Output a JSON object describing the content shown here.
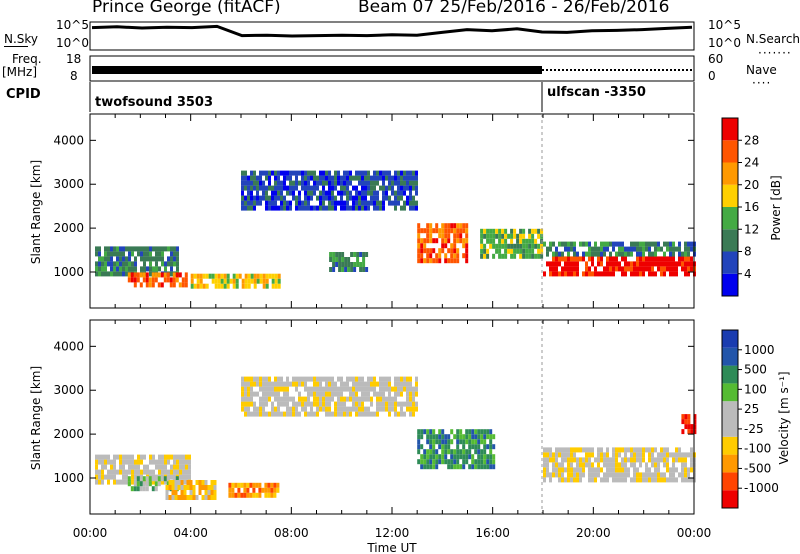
{
  "header": {
    "station": "Prince George (fitACF)",
    "beam_dates": "Beam 07   25/Feb/2016 - 26/Feb/2016"
  },
  "top_panels": {
    "nsky_label": "N.Sky",
    "nsky_ticks": [
      "10^5",
      "10^0"
    ],
    "nsearch_label": "N.Search",
    "nsearch_ticks": [
      "10^5",
      "10^0"
    ],
    "freq_label": "Freq.",
    "freq_unit": "[MHz]",
    "freq_ticks": [
      "18",
      "8"
    ],
    "nave_label": "Nave",
    "nave_ticks": [
      "60",
      "0"
    ],
    "cpid_label": "CPID",
    "cpid_segments": [
      {
        "name": "twofsound 3503",
        "start_h": 0,
        "end_h": 18
      },
      {
        "name": "ulfscan -3350",
        "start_h": 18,
        "end_h": 24
      }
    ]
  },
  "colors": {
    "power_scale": [
      "#0000ee",
      "#2244bb",
      "#3a7a55",
      "#44aa44",
      "#ffd000",
      "#ff9900",
      "#ff5500",
      "#ee0000"
    ],
    "velocity_scale": [
      "#ee0000",
      "#ff4400",
      "#ff9900",
      "#ffcc00",
      "#bbbbbb",
      "#bbbbbb",
      "#55bb33",
      "#2e8b57",
      "#2255aa",
      "#1a3cb0"
    ],
    "ground_scatter": "#bbbbbb"
  },
  "chart_data": [
    {
      "type": "heatmap",
      "name": "power",
      "x_ticks": [
        "00:00",
        "04:00",
        "08:00",
        "12:00",
        "16:00",
        "20:00",
        "00:00"
      ],
      "xlabel": "Time UT",
      "ylabel": "Slant Range [km]",
      "y_ticks": [
        1000,
        2000,
        3000,
        4000
      ],
      "xlim": [
        0,
        24
      ],
      "ylim": [
        180,
        4600
      ],
      "colorbar_label": "Power [dB]",
      "colorbar_ticks": [
        4,
        8,
        12,
        16,
        20,
        24,
        28
      ],
      "regions": [
        {
          "t0": 0.2,
          "t1": 3.5,
          "r0": 900,
          "r1": 1500,
          "level": 2
        },
        {
          "t0": 1.5,
          "t1": 3.8,
          "r0": 650,
          "r1": 950,
          "level": 6
        },
        {
          "t0": 4.0,
          "t1": 7.5,
          "r0": 620,
          "r1": 850,
          "level": 4
        },
        {
          "t0": 9.5,
          "t1": 11.0,
          "r0": 1000,
          "r1": 1400,
          "level": 2
        },
        {
          "t0": 13.0,
          "t1": 15.0,
          "r0": 1200,
          "r1": 2000,
          "level": 6
        },
        {
          "t0": 15.5,
          "t1": 18.0,
          "r0": 1300,
          "r1": 1900,
          "level": 3
        },
        {
          "t0": 18.0,
          "t1": 24.0,
          "r0": 900,
          "r1": 1350,
          "level": 7
        },
        {
          "t0": 18.0,
          "t1": 24.0,
          "r0": 1350,
          "r1": 1650,
          "level": 2
        },
        {
          "t0": 6.0,
          "t1": 13.0,
          "r0": 2400,
          "r1": 3300,
          "level": 1
        }
      ]
    },
    {
      "type": "heatmap",
      "name": "velocity",
      "x_ticks": [
        "00:00",
        "04:00",
        "08:00",
        "12:00",
        "16:00",
        "20:00",
        "00:00"
      ],
      "xlabel": "Time UT",
      "ylabel": "Slant Range [km]",
      "y_ticks": [
        1000,
        2000,
        3000,
        4000
      ],
      "xlim": [
        0,
        24
      ],
      "ylim": [
        180,
        4600
      ],
      "colorbar_label": "Velocity [m s⁻¹]",
      "colorbar_ticks": [
        "1000",
        "500",
        "100",
        "25",
        "-25",
        "-100",
        "-500",
        "-1000"
      ],
      "regions": [
        {
          "t0": 0.2,
          "t1": 4.0,
          "r0": 850,
          "r1": 1500,
          "level": 4
        },
        {
          "t0": 1.5,
          "t1": 3.5,
          "r0": 700,
          "r1": 1000,
          "level": 6
        },
        {
          "t0": 3.0,
          "t1": 5.0,
          "r0": 500,
          "r1": 900,
          "level": 3
        },
        {
          "t0": 5.5,
          "t1": 7.5,
          "r0": 550,
          "r1": 800,
          "level": 2
        },
        {
          "t0": 13.0,
          "t1": 16.0,
          "r0": 1200,
          "r1": 2000,
          "level": 7
        },
        {
          "t0": 18.0,
          "t1": 24.0,
          "r0": 900,
          "r1": 1600,
          "level": 4
        },
        {
          "t0": 23.5,
          "t1": 24.0,
          "r0": 2000,
          "r1": 2400,
          "level": 0
        },
        {
          "t0": 6.0,
          "t1": 13.0,
          "r0": 2400,
          "r1": 3300,
          "level": 4
        }
      ]
    }
  ],
  "nsky_series": [
    5.1,
    5.3,
    5.0,
    5.2,
    5.1,
    5.4,
    3.1,
    3.2,
    3.0,
    3.1,
    3.2,
    3.1,
    3.3,
    3.2,
    3.9,
    4.6,
    4.3,
    4.8,
    4.0,
    3.9,
    4.3,
    4.4,
    4.6,
    4.9,
    5.2
  ]
}
